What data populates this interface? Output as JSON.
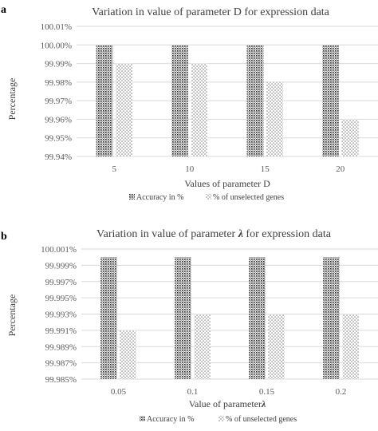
{
  "colors": {
    "grid": "#d9d9d9",
    "text": "#404040",
    "ticks": "#595959",
    "background": "#ffffff"
  },
  "chart_data": [
    {
      "panel_label": "a",
      "type": "bar",
      "title": "Variation in value of parameter D for expression data",
      "xlabel": "Values of parameter D",
      "ylabel": "Percentage",
      "categories": [
        "5",
        "10",
        "15",
        "20"
      ],
      "yticks": [
        "99.94%",
        "99.95%",
        "99.96%",
        "99.97%",
        "99.98%",
        "99.99%",
        "100.00%",
        "100.01%"
      ],
      "ylim": [
        99.94,
        100.01
      ],
      "grid": true,
      "legend_position": "bottom",
      "series": [
        {
          "name": "Accuracy in %",
          "pattern": "dense-dots",
          "values": [
            100.0,
            100.0,
            100.0,
            100.0
          ]
        },
        {
          "name": "% of unselected genes",
          "pattern": "sparse-dots",
          "values": [
            99.99,
            99.99,
            99.98,
            99.96
          ]
        }
      ]
    },
    {
      "panel_label": "b",
      "type": "bar",
      "title_prefix": "Variation in value of parameter ",
      "title_symbol": "λ",
      "title_suffix": " for expression data",
      "xlabel_prefix": "Value of parameter",
      "xlabel_symbol": "λ",
      "ylabel": "Percentage",
      "categories": [
        "0.05",
        "0.1",
        "0.15",
        "0.2"
      ],
      "yticks": [
        "99.985%",
        "99.987%",
        "99.989%",
        "99.991%",
        "99.993%",
        "99.995%",
        "99.997%",
        "99.999%",
        "100.001%"
      ],
      "ylim": [
        99.985,
        100.001
      ],
      "grid": true,
      "legend_position": "bottom",
      "series": [
        {
          "name": "Accuracy in %",
          "pattern": "dense-dots",
          "values": [
            100.0,
            100.0,
            100.0,
            100.0
          ]
        },
        {
          "name": "% of unselected genes",
          "pattern": "sparse-dots",
          "values": [
            99.991,
            99.993,
            99.993,
            99.993
          ]
        }
      ]
    }
  ]
}
